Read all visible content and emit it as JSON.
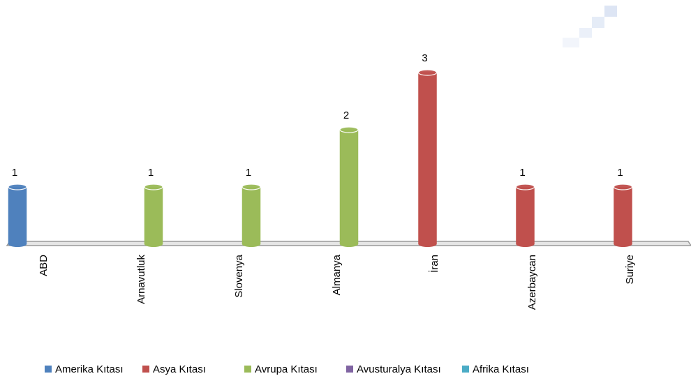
{
  "chart_data": {
    "type": "bar",
    "categories": [
      "ABD",
      "Arnavutluk",
      "Slovenya",
      "Almanya",
      "İran",
      "Azerbaycan",
      "Suriye"
    ],
    "series": [
      {
        "name": "Amerika Kıtası",
        "color": "#4f81bd",
        "values": [
          1,
          null,
          null,
          null,
          null,
          null,
          null
        ]
      },
      {
        "name": "Asya Kıtası",
        "color": "#c0504d",
        "values": [
          null,
          null,
          null,
          null,
          3,
          1,
          1
        ]
      },
      {
        "name": "Avrupa Kıtası",
        "color": "#9bbb59",
        "values": [
          null,
          1,
          1,
          2,
          null,
          null,
          null
        ]
      },
      {
        "name": "Avusturalya Kıtası",
        "color": "#8064a2",
        "values": [
          null,
          null,
          null,
          null,
          null,
          null,
          null
        ]
      },
      {
        "name": "Afrika Kıtası",
        "color": "#4bacc6",
        "values": [
          null,
          null,
          null,
          null,
          null,
          null,
          null
        ]
      }
    ],
    "legend": "bottom"
  }
}
